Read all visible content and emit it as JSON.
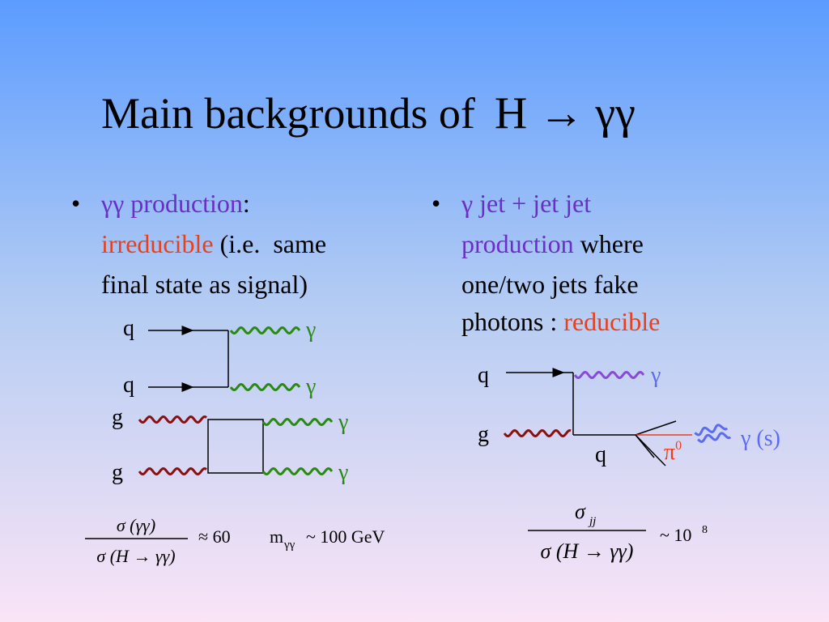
{
  "title": {
    "text": "Main backgrounds of",
    "formula": "H → γγ"
  },
  "left": {
    "bullet": [
      "γγ production",
      ":",
      "irreducible",
      "(i.e.  same",
      "final state as signal)"
    ],
    "diagram_qq": {
      "labels": [
        "q",
        "q",
        "γ",
        "γ"
      ]
    },
    "diagram_gg": {
      "labels": [
        "g",
        "g",
        "γ",
        "γ"
      ]
    },
    "ratio": {
      "numerator": "σ (γγ)",
      "denominator": "σ (H → γγ)",
      "approx": "≈ 60",
      "mass": "m",
      "mass_sub": "γγ",
      "mass_value": "~ 100 GeV"
    }
  },
  "right": {
    "bullet": [
      "γ jet + jet jet",
      "production",
      "where",
      "one/two jets fake",
      "photons :",
      "reducible"
    ],
    "diagram": {
      "labels": [
        "q",
        "γ",
        "g",
        "q",
        "π",
        "0",
        "γ (s)"
      ]
    },
    "ratio": {
      "numerator": "σ",
      "numerator_sub": "jj",
      "denominator": "σ (H → γγ)",
      "approx": "~ 10",
      "exponent": "8"
    }
  }
}
